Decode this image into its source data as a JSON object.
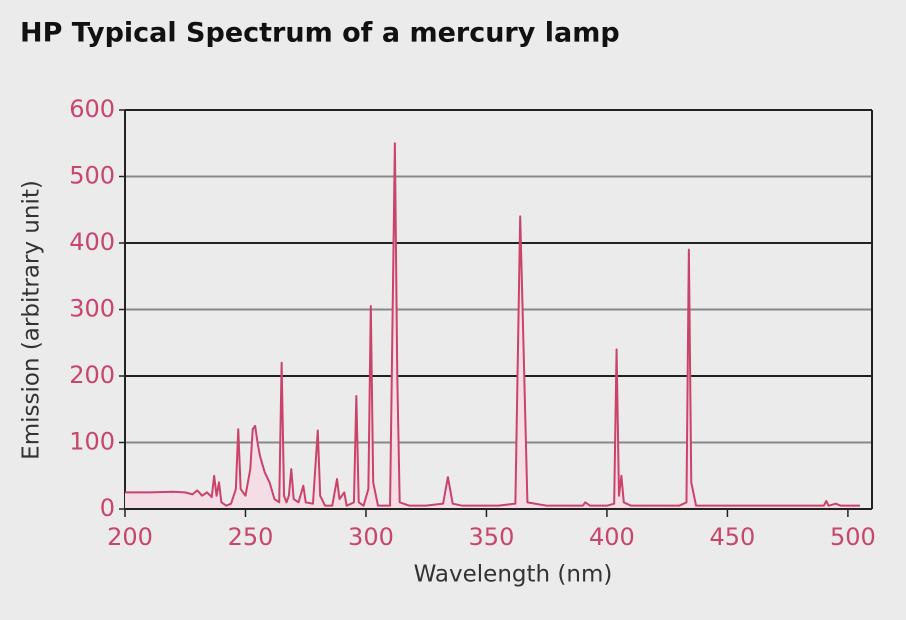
{
  "chart_data": {
    "type": "line",
    "title": "HP Typical Spectrum of a mercury lamp",
    "xlabel": "Wavelength (nm)",
    "ylabel": "Emission (arbitrary unit)",
    "color": "#c9436a",
    "x": [
      200,
      210,
      220,
      225,
      228,
      230,
      232,
      234,
      236,
      237,
      238,
      239,
      240,
      242,
      244,
      246,
      247,
      248,
      250,
      252,
      253,
      254,
      255,
      256,
      258,
      260,
      262,
      264,
      265,
      266,
      267,
      268,
      269,
      270,
      272,
      274,
      275,
      278,
      280,
      281,
      283,
      286,
      288,
      289,
      291,
      292,
      295,
      296,
      297,
      299,
      301,
      302,
      303,
      305,
      310,
      312,
      313,
      314,
      318,
      325,
      332,
      334,
      336,
      340,
      355,
      362,
      364,
      365,
      367,
      375,
      390,
      391,
      393,
      400,
      403,
      404,
      405,
      406,
      407,
      410,
      430,
      433,
      434,
      435,
      437,
      480,
      490,
      491,
      492,
      495,
      497,
      505
    ],
    "values": [
      25,
      25,
      26,
      25,
      22,
      28,
      20,
      25,
      18,
      50,
      20,
      40,
      10,
      5,
      8,
      30,
      120,
      30,
      20,
      60,
      120,
      125,
      100,
      80,
      55,
      40,
      15,
      10,
      220,
      20,
      10,
      20,
      60,
      15,
      10,
      35,
      10,
      8,
      118,
      20,
      5,
      5,
      45,
      15,
      25,
      5,
      10,
      170,
      10,
      5,
      30,
      305,
      40,
      5,
      5,
      550,
      200,
      10,
      5,
      5,
      8,
      48,
      8,
      5,
      5,
      8,
      440,
      300,
      10,
      5,
      5,
      10,
      5,
      5,
      8,
      240,
      20,
      50,
      10,
      5,
      5,
      10,
      390,
      40,
      5,
      5,
      5,
      12,
      5,
      8,
      5,
      5
    ],
    "xlim": [
      200,
      510
    ],
    "ylim": [
      0,
      600
    ],
    "xticks": [
      200,
      250,
      300,
      350,
      400,
      450,
      500
    ],
    "yticks": [
      0,
      100,
      200,
      300,
      400,
      500,
      600
    ],
    "grid": true
  }
}
